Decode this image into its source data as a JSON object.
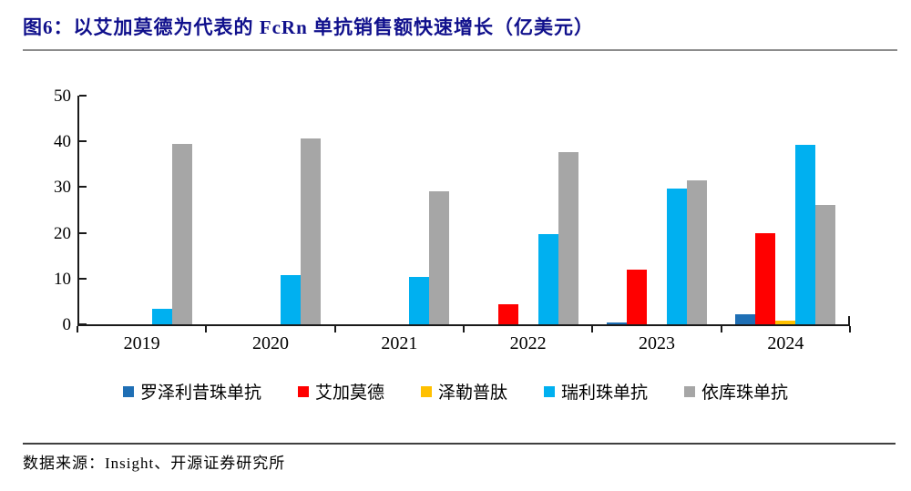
{
  "title": "图6：以艾加莫德为代表的 FcRn 单抗销售额快速增长（亿美元）",
  "source": "数据来源：Insight、开源证券研究所",
  "colors": {
    "title": "#10108c",
    "title_rule": "#8c8c8c",
    "axis": "#1a1a1a",
    "source_rule": "#3f3f3f"
  },
  "chart_data": {
    "type": "bar",
    "title": "以艾加莫德为代表的 FcRn 单抗销售额快速增长（亿美元）",
    "categories": [
      "2019",
      "2020",
      "2021",
      "2022",
      "2023",
      "2024"
    ],
    "series": [
      {
        "name": "罗泽利昔珠单抗",
        "color": "#1F6FB5",
        "values": [
          0,
          0,
          0,
          0,
          0.3,
          2.1
        ]
      },
      {
        "name": "艾加莫德",
        "color": "#FF0000",
        "values": [
          0,
          0,
          0,
          4.4,
          12.0,
          20.0
        ]
      },
      {
        "name": "泽勒普肽",
        "color": "#FFC000",
        "values": [
          0,
          0,
          0,
          0,
          0,
          0.7
        ]
      },
      {
        "name": "瑞利珠单抗",
        "color": "#00B0F0",
        "values": [
          3.4,
          10.8,
          10.3,
          19.7,
          29.6,
          39.3
        ]
      },
      {
        "name": "依库珠单抗",
        "color": "#A6A6A6",
        "values": [
          39.5,
          40.7,
          29.1,
          37.7,
          31.5,
          26.0
        ]
      }
    ],
    "xlabel": "",
    "ylabel": "",
    "ylim": [
      0,
      50
    ],
    "yticks": [
      0,
      10,
      20,
      30,
      40,
      50
    ],
    "grid": false,
    "legend_position": "bottom"
  }
}
